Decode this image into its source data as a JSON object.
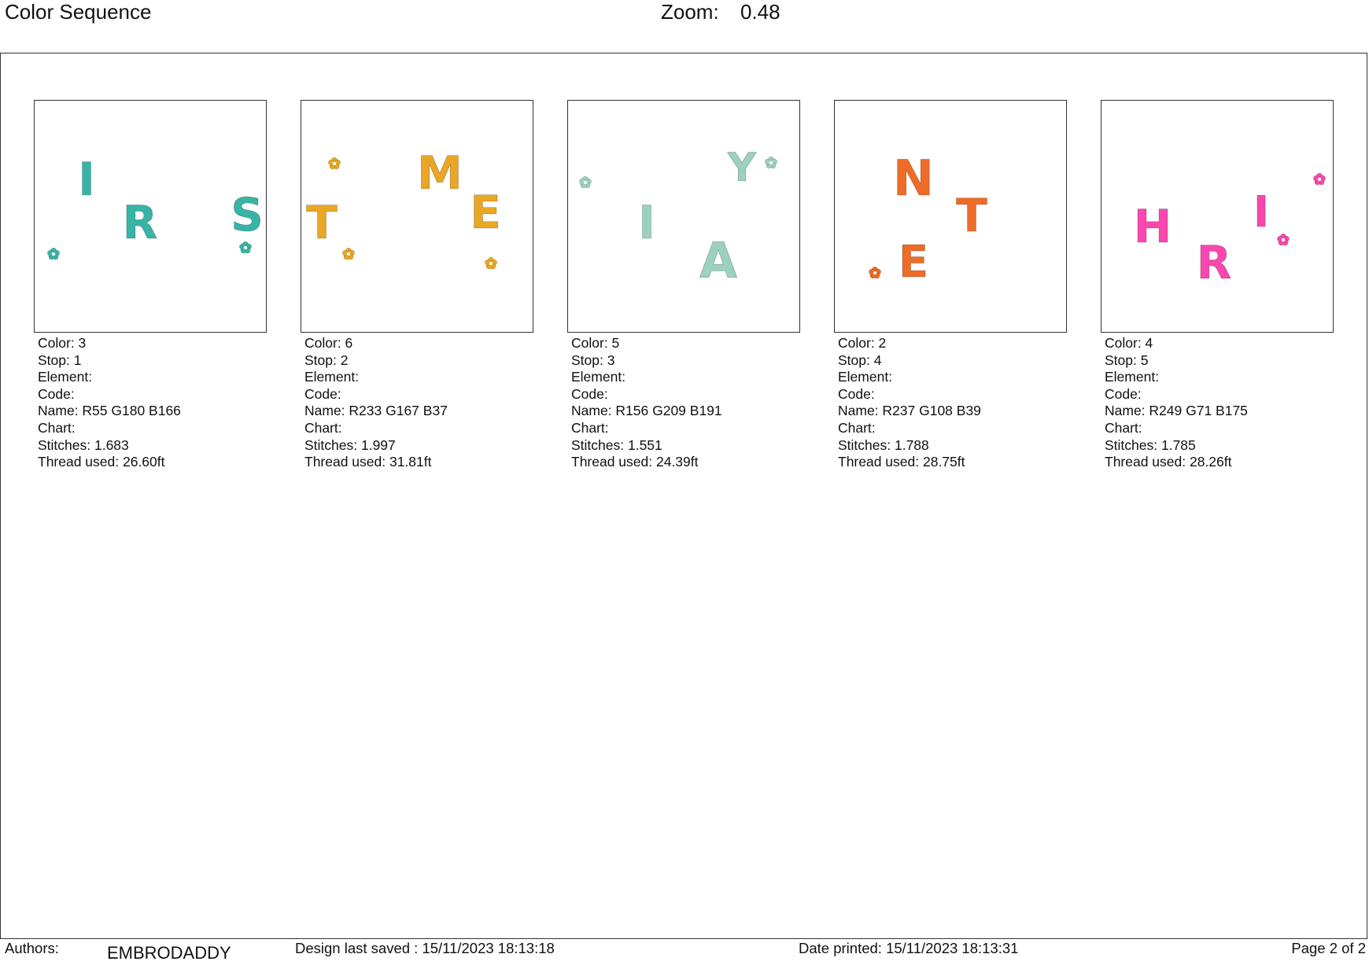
{
  "header": {
    "title": "Color Sequence",
    "zoom_label": "Zoom:",
    "zoom_value": "0.48"
  },
  "cards": [
    {
      "color_hex": "#37B4A6",
      "glyph_letters": [
        "I",
        "R",
        "S"
      ],
      "fields": {
        "color": "Color: 3",
        "stop": "Stop: 1",
        "element": "Element:",
        "code": "Code:",
        "name": "Name: R55 G180 B166",
        "chart": "Chart:",
        "stitches": "Stitches: 1.683",
        "thread": "Thread used: 26.60ft"
      }
    },
    {
      "color_hex": "#E9A725",
      "glyph_letters": [
        "T",
        "M",
        "E"
      ],
      "fields": {
        "color": "Color: 6",
        "stop": "Stop: 2",
        "element": "Element:",
        "code": "Code:",
        "name": "Name: R233 G167 B37",
        "chart": "Chart:",
        "stitches": "Stitches: 1.997",
        "thread": "Thread used: 31.81ft"
      }
    },
    {
      "color_hex": "#9CD1BF",
      "glyph_letters": [
        "Y",
        "I",
        "A"
      ],
      "fields": {
        "color": "Color: 5",
        "stop": "Stop: 3",
        "element": "Element:",
        "code": "Code:",
        "name": "Name: R156 G209 B191",
        "chart": "Chart:",
        "stitches": "Stitches: 1.551",
        "thread": "Thread used: 24.39ft"
      }
    },
    {
      "color_hex": "#ED6C27",
      "glyph_letters": [
        "N",
        "T",
        "E"
      ],
      "fields": {
        "color": "Color: 2",
        "stop": "Stop: 4",
        "element": "Element:",
        "code": "Code:",
        "name": "Name: R237 G108 B39",
        "chart": "Chart:",
        "stitches": "Stitches: 1.788",
        "thread": "Thread used: 28.75ft"
      }
    },
    {
      "color_hex": "#F947AF",
      "glyph_letters": [
        "H",
        "R",
        "I"
      ],
      "fields": {
        "color": "Color: 4",
        "stop": "Stop: 5",
        "element": "Element:",
        "code": "Code:",
        "name": "Name: R249 G71 B175",
        "chart": "Chart:",
        "stitches": "Stitches: 1.785",
        "thread": "Thread used: 28.26ft"
      }
    }
  ],
  "footer": {
    "authors_label": "Authors:",
    "authors_value": "EMBRODADDY",
    "design_saved": "Design last saved : 15/11/2023 18:13:18",
    "date_printed": "Date printed: 15/11/2023 18:13:31",
    "page": "Page 2 of 2"
  }
}
